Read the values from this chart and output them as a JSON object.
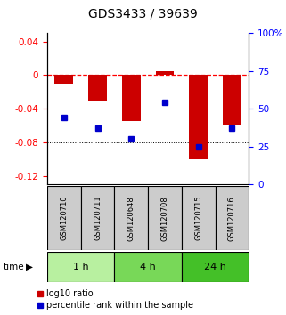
{
  "title": "GDS3433 / 39639",
  "samples": [
    "GSM120710",
    "GSM120711",
    "GSM120648",
    "GSM120708",
    "GSM120715",
    "GSM120716"
  ],
  "log10_ratio": [
    -0.01,
    -0.03,
    -0.055,
    0.005,
    -0.1,
    -0.06
  ],
  "percentile_rank": [
    44,
    37,
    30,
    54,
    25,
    37
  ],
  "groups": [
    {
      "label": "1 h",
      "indices": [
        0,
        1
      ],
      "color": "#b8f0a0"
    },
    {
      "label": "4 h",
      "indices": [
        2,
        3
      ],
      "color": "#78d858"
    },
    {
      "label": "24 h",
      "indices": [
        4,
        5
      ],
      "color": "#44c028"
    }
  ],
  "bar_color": "#cc0000",
  "dot_color": "#0000cc",
  "bar_width": 0.55,
  "ylim_left": [
    -0.13,
    0.05
  ],
  "ylim_right": [
    0,
    100
  ],
  "yticks_left": [
    0.04,
    0,
    -0.04,
    -0.08,
    -0.12
  ],
  "yticks_right": [
    100,
    75,
    50,
    25,
    0
  ],
  "sample_box_color": "#cccccc",
  "title_fontsize": 10,
  "tick_fontsize": 7.5,
  "legend_fontsize": 7,
  "sample_fontsize": 6,
  "group_fontsize": 8
}
